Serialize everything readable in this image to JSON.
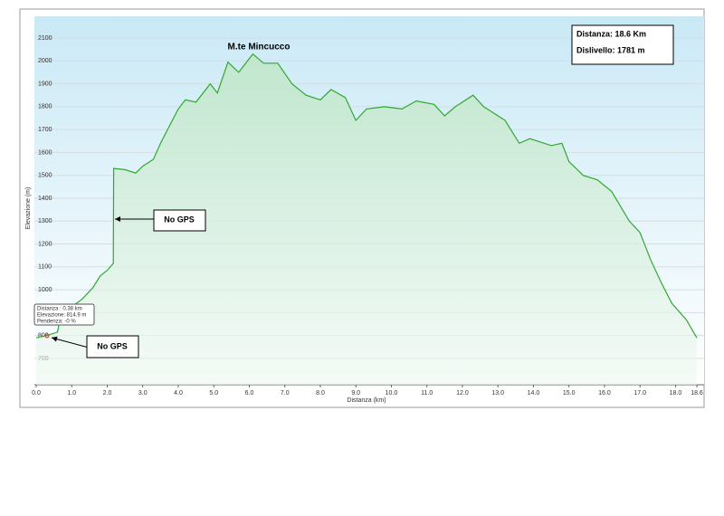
{
  "chart_data": {
    "type": "area",
    "title": "M.te Mincucco",
    "info": [
      "Distanza: 18.6 Km",
      "Dislivello: 1781 m"
    ],
    "annotations": [
      "No GPS",
      "No GPS"
    ],
    "tooltip": [
      "Distanza : 0.38 km",
      "Elevazione: 814.9 m",
      "Pendenza: -0 %"
    ],
    "x_label": "Distanza (km)",
    "y_label": "Elevazione (m)",
    "color": "#2fa82f",
    "grid": true,
    "x": [
      0,
      0.3,
      0.6,
      0.65,
      1.0,
      1.3,
      1.6,
      1.8,
      2.0,
      2.17,
      2.18,
      2.5,
      2.8,
      3.0,
      3.3,
      3.5,
      3.7,
      4.0,
      4.2,
      4.5,
      4.9,
      5.1,
      5.4,
      5.7,
      6.1,
      6.4,
      6.8,
      7.2,
      7.6,
      8.0,
      8.3,
      8.7,
      9.0,
      9.3,
      9.8,
      10.3,
      10.7,
      11.2,
      11.5,
      11.8,
      12.3,
      12.6,
      12.8,
      13.2,
      13.6,
      13.9,
      14.5,
      14.8,
      15.0,
      15.4,
      15.8,
      16.2,
      16.7,
      17.0,
      17.3,
      17.6,
      17.9,
      18.3,
      18.6
    ],
    "values": [
      790,
      800,
      815,
      855,
      925,
      960,
      1010,
      1060,
      1085,
      1115,
      1530,
      1525,
      1510,
      1540,
      1570,
      1640,
      1700,
      1790,
      1830,
      1820,
      1900,
      1860,
      1995,
      1950,
      2030,
      1990,
      1990,
      1900,
      1850,
      1830,
      1875,
      1840,
      1740,
      1790,
      1800,
      1790,
      1825,
      1810,
      1760,
      1800,
      1850,
      1800,
      1780,
      1740,
      1640,
      1660,
      1630,
      1640,
      1560,
      1500,
      1480,
      1430,
      1300,
      1250,
      1130,
      1030,
      940,
      870,
      790
    ],
    "xlim": [
      0,
      18.6
    ],
    "xticks": [
      {
        "value": 0,
        "label": "0.0"
      },
      {
        "value": 1,
        "label": "1.0"
      },
      {
        "value": 2,
        "label": "2.0"
      },
      {
        "value": 3,
        "label": "3.0"
      },
      {
        "value": 4,
        "label": "4.0"
      },
      {
        "value": 5,
        "label": "5.0"
      },
      {
        "value": 6,
        "label": "6.0"
      },
      {
        "value": 7,
        "label": "7.0"
      },
      {
        "value": 8,
        "label": "8.0"
      },
      {
        "value": 9,
        "label": "9.0"
      },
      {
        "value": 10,
        "label": "10.0"
      },
      {
        "value": 11,
        "label": "11.0"
      },
      {
        "value": 12,
        "label": "12.0"
      },
      {
        "value": 13,
        "label": "13.0"
      },
      {
        "value": 14,
        "label": "14.0"
      },
      {
        "value": 15,
        "label": "15.0"
      },
      {
        "value": 16,
        "label": "16.0"
      },
      {
        "value": 17,
        "label": "17.0"
      },
      {
        "value": 18,
        "label": "18.0"
      },
      18.6
    ],
    "ylim": [
      585,
      2195
    ],
    "yticks": [
      700,
      800,
      900,
      1000,
      1100,
      1200,
      1300,
      1400,
      1500,
      1600,
      1700,
      1800,
      1900,
      2000,
      2100
    ]
  }
}
